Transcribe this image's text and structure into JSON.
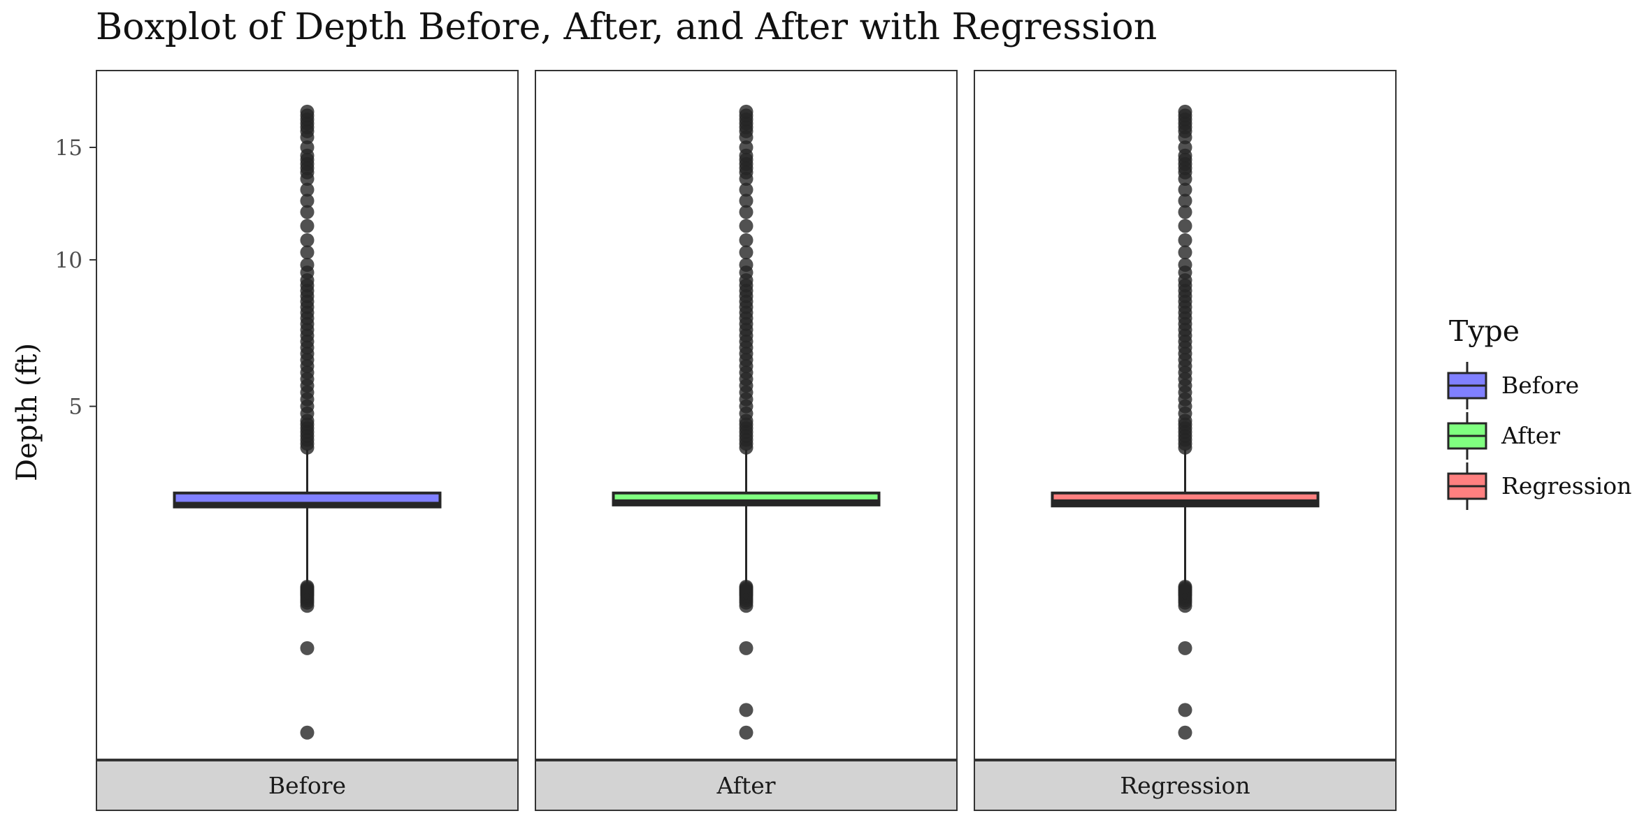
{
  "chart_data": {
    "type": "boxplot",
    "title": "Boxplot of Depth Before, After, and After with Regression",
    "xlabel": "",
    "ylabel": "Depth (ft)",
    "y_scale": "sqrt",
    "ylim": [
      0,
      17.2
    ],
    "y_ticks": [
      5,
      10,
      15
    ],
    "y_tick_labels": [
      "5",
      "10",
      "15"
    ],
    "facets": [
      "Before",
      "After",
      "Regression"
    ],
    "legend": {
      "title": "Type",
      "position": "right",
      "entries": [
        "Before",
        "After",
        "Regression"
      ]
    },
    "colors": {
      "Before": "#8080ff",
      "After": "#80ff80",
      "Regression": "#ff8080",
      "outline": "#262626",
      "strip": "#d3d3d3"
    },
    "series": [
      {
        "name": "Before",
        "box": {
          "whisker_low": 1.2,
          "q1": 2.56,
          "median": 2.6,
          "q3": 2.85,
          "whisker_high": 3.85
        },
        "outliers": [
          0.03,
          0.5,
          0.95,
          0.99,
          1.02,
          1.05,
          1.08,
          1.1,
          1.12,
          1.14,
          1.16,
          1.18,
          1.2,
          3.9,
          4.0,
          4.1,
          4.2,
          4.3,
          4.4,
          4.5,
          4.6,
          4.8,
          5.0,
          5.2,
          5.4,
          5.6,
          5.8,
          6.0,
          6.2,
          6.4,
          6.6,
          6.8,
          7.0,
          7.2,
          7.4,
          7.6,
          7.8,
          8.0,
          8.2,
          8.4,
          8.6,
          8.8,
          9.0,
          9.2,
          9.5,
          9.8,
          10.3,
          10.8,
          11.4,
          12.0,
          12.5,
          13.0,
          13.5,
          13.8,
          14.0,
          14.2,
          14.4,
          14.6,
          15.0,
          15.5,
          15.8,
          16.0,
          16.2,
          16.4,
          16.6,
          16.8
        ]
      },
      {
        "name": "After",
        "box": {
          "whisker_low": 1.2,
          "q1": 2.6,
          "median": 2.65,
          "q3": 2.85,
          "whisker_high": 3.85
        },
        "outliers": [
          0.03,
          0.1,
          0.5,
          0.95,
          0.99,
          1.02,
          1.05,
          1.08,
          1.1,
          1.12,
          1.14,
          1.16,
          1.18,
          1.2,
          3.9,
          4.0,
          4.1,
          4.2,
          4.3,
          4.4,
          4.5,
          4.6,
          4.8,
          5.0,
          5.2,
          5.4,
          5.6,
          5.8,
          6.0,
          6.2,
          6.4,
          6.6,
          6.8,
          7.0,
          7.2,
          7.4,
          7.6,
          7.8,
          8.0,
          8.2,
          8.4,
          8.6,
          8.8,
          9.0,
          9.2,
          9.5,
          9.8,
          10.3,
          10.8,
          11.4,
          12.0,
          12.5,
          13.0,
          13.5,
          13.8,
          14.0,
          14.2,
          14.4,
          14.6,
          15.0,
          15.5,
          15.8,
          16.0,
          16.2,
          16.4,
          16.6,
          16.8
        ]
      },
      {
        "name": "Regression",
        "box": {
          "whisker_low": 1.2,
          "q1": 2.58,
          "median": 2.65,
          "q3": 2.85,
          "whisker_high": 3.85
        },
        "outliers": [
          0.03,
          0.1,
          0.5,
          0.95,
          0.99,
          1.02,
          1.05,
          1.08,
          1.1,
          1.12,
          1.14,
          1.16,
          1.18,
          1.2,
          3.9,
          4.0,
          4.1,
          4.2,
          4.3,
          4.4,
          4.5,
          4.6,
          4.8,
          5.0,
          5.2,
          5.4,
          5.6,
          5.8,
          6.0,
          6.2,
          6.4,
          6.6,
          6.8,
          7.0,
          7.2,
          7.4,
          7.6,
          7.8,
          8.0,
          8.2,
          8.4,
          8.6,
          8.8,
          9.0,
          9.2,
          9.5,
          9.8,
          10.3,
          10.8,
          11.4,
          12.0,
          12.5,
          13.0,
          13.5,
          13.8,
          14.0,
          14.2,
          14.4,
          14.6,
          15.0,
          15.5,
          15.8,
          16.0,
          16.2,
          16.4,
          16.6,
          16.8
        ]
      }
    ]
  }
}
